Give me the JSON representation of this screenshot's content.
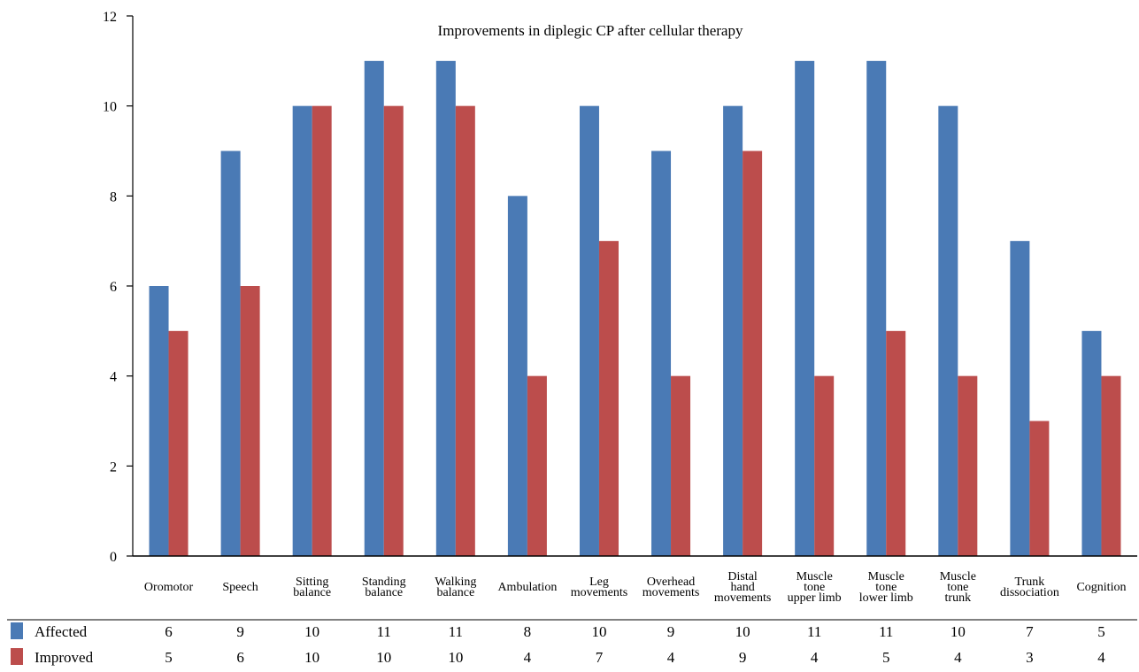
{
  "chart_data": {
    "type": "bar",
    "title": "Improvements in diplegic CP after cellular therapy",
    "xlabel": "",
    "ylabel": "",
    "ylim": [
      0,
      12
    ],
    "yticks": [
      0,
      2,
      4,
      6,
      8,
      10,
      12
    ],
    "grid": false,
    "legend": "data table below chart",
    "categories": [
      [
        "Oromotor"
      ],
      [
        "Speech"
      ],
      [
        "Sitting",
        "balance"
      ],
      [
        "Standing",
        "balance"
      ],
      [
        "Walking",
        "balance"
      ],
      [
        "Ambulation"
      ],
      [
        "Leg",
        "movements"
      ],
      [
        "Overhead",
        "movements"
      ],
      [
        "Distal",
        "hand",
        "movements"
      ],
      [
        "Muscle",
        "tone",
        "upper limb"
      ],
      [
        "Muscle",
        "tone",
        "lower limb"
      ],
      [
        "Muscle",
        "tone",
        "trunk"
      ],
      [
        "Trunk",
        "dissociation"
      ],
      [
        "Cognition"
      ]
    ],
    "series": [
      {
        "name": "Affected",
        "color": "#4a7ab5",
        "values": [
          6,
          9,
          10,
          11,
          11,
          8,
          10,
          9,
          10,
          11,
          11,
          10,
          7,
          5
        ]
      },
      {
        "name": "Improved",
        "color": "#bc4d4c",
        "values": [
          5,
          6,
          10,
          10,
          10,
          4,
          7,
          4,
          9,
          4,
          5,
          4,
          3,
          4
        ]
      }
    ]
  }
}
